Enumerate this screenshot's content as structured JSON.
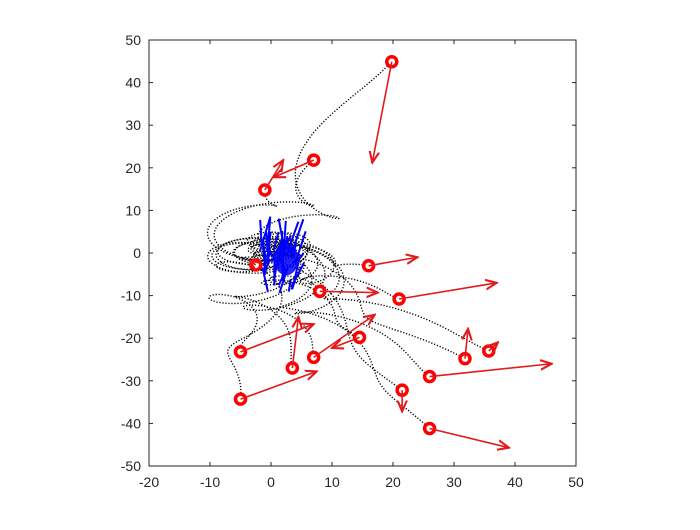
{
  "chart_data": {
    "type": "scatter",
    "title": "",
    "xlabel": "",
    "ylabel": "",
    "xlim": [
      -20,
      50
    ],
    "ylim": [
      -50,
      50
    ],
    "xticks": [
      -20,
      -10,
      0,
      10,
      20,
      30,
      40,
      50
    ],
    "yticks": [
      -50,
      -40,
      -30,
      -20,
      -10,
      0,
      10,
      20,
      30,
      40,
      50
    ],
    "xtick_labels": [
      "-20",
      "-10",
      "0",
      "10",
      "20",
      "30",
      "40",
      "50"
    ],
    "ytick_labels": [
      "-50",
      "-40",
      "-30",
      "-20",
      "-10",
      "0",
      "10",
      "20",
      "30",
      "40",
      "50"
    ],
    "grid": false,
    "box": true,
    "colors": {
      "markers": "#ff0000",
      "arrows": "#e31a1c",
      "trajectories": "#000000",
      "final_arrows": "#0000ff",
      "axes": "#262626"
    },
    "start_points": [
      {
        "x": 19.8,
        "y": 44.9,
        "vx": -3.2,
        "vy": -23.7
      },
      {
        "x": 7.0,
        "y": 21.8,
        "vx": -6.5,
        "vy": -4.0
      },
      {
        "x": -1.0,
        "y": 14.8,
        "vx": 3.0,
        "vy": 7.0
      },
      {
        "x": -2.5,
        "y": -2.8,
        "vx": -1.0,
        "vy": 1.0
      },
      {
        "x": 16.0,
        "y": -3.0,
        "vx": 8.0,
        "vy": 2.0
      },
      {
        "x": 8.0,
        "y": -9.0,
        "vx": 9.5,
        "vy": -0.3
      },
      {
        "x": 21.0,
        "y": -10.8,
        "vx": 16.0,
        "vy": 3.8
      },
      {
        "x": 14.5,
        "y": -19.8,
        "vx": -4.5,
        "vy": -2.5
      },
      {
        "x": -5.0,
        "y": -23.2,
        "vx": 12.0,
        "vy": 6.5
      },
      {
        "x": 7.0,
        "y": -24.5,
        "vx": 10.0,
        "vy": 10.0
      },
      {
        "x": 3.5,
        "y": -27.0,
        "vx": 1.0,
        "vy": 12.0
      },
      {
        "x": 31.8,
        "y": -24.8,
        "vx": 0.5,
        "vy": 7.0
      },
      {
        "x": 35.7,
        "y": -23.0,
        "vx": 1.5,
        "vy": 2.0
      },
      {
        "x": 26.0,
        "y": -29.0,
        "vx": 20.0,
        "vy": 3.0
      },
      {
        "x": 21.5,
        "y": -32.2,
        "vx": 0.0,
        "vy": -5.0
      },
      {
        "x": -5.0,
        "y": -34.3,
        "vx": 12.5,
        "vy": 6.5
      },
      {
        "x": 26.0,
        "y": -41.2,
        "vx": 13.0,
        "vy": -4.5
      }
    ]
  }
}
